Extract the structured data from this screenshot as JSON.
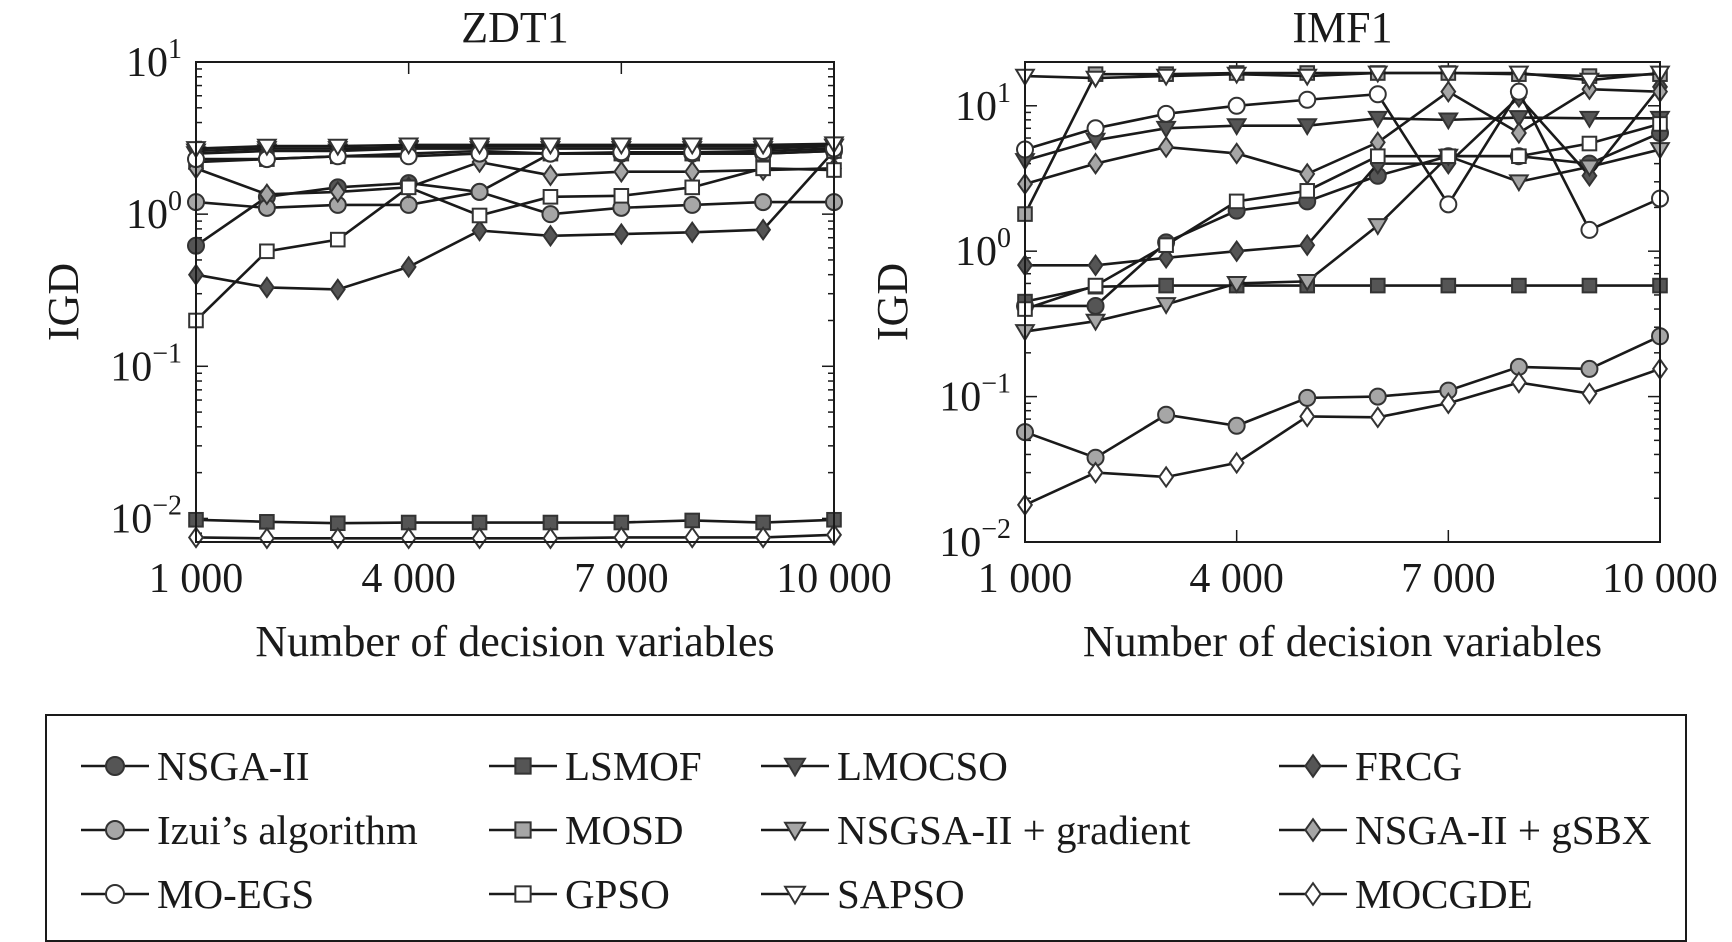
{
  "chart_data": [
    {
      "type": "line",
      "title": "ZDT1",
      "xlabel": "Number of decision variables",
      "ylabel": "IGD",
      "yscale": "log",
      "xlim": [
        1000,
        10000
      ],
      "ylim": [
        0.007,
        10
      ],
      "xticks": [
        1000,
        4000,
        7000,
        10000
      ],
      "xtick_labels": [
        "1 000",
        "4 000",
        "7 000",
        "10 000"
      ],
      "ytick_labels": [
        {
          "value": 10,
          "base": "10",
          "exp": "1"
        },
        {
          "value": 1,
          "base": "10",
          "exp": "0"
        },
        {
          "value": 0.1,
          "base": "10",
          "exp": "−1"
        },
        {
          "value": 0.01,
          "base": "10",
          "exp": "−2"
        }
      ],
      "x": [
        1000,
        2000,
        3000,
        4000,
        5000,
        6000,
        7000,
        8000,
        9000,
        10000
      ],
      "series": [
        {
          "name": "NSGA-II",
          "values": [
            0.62,
            1.3,
            1.5,
            1.6,
            1.4,
            2.5,
            2.5,
            2.5,
            2.5,
            2.6
          ]
        },
        {
          "name": "LSMOF",
          "values": [
            0.0098,
            0.0095,
            0.0093,
            0.0094,
            0.0094,
            0.0094,
            0.0094,
            0.0097,
            0.0094,
            0.0098
          ]
        },
        {
          "name": "LMOCSO",
          "values": [
            2.5,
            2.6,
            2.6,
            2.7,
            2.7,
            2.7,
            2.7,
            2.7,
            2.7,
            2.8
          ]
        },
        {
          "name": "FRCG",
          "values": [
            0.4,
            0.33,
            0.32,
            0.45,
            0.78,
            0.72,
            0.74,
            0.76,
            0.79,
            2.6
          ]
        },
        {
          "name": "Izui’s algorithm",
          "values": [
            1.2,
            1.1,
            1.15,
            1.15,
            1.4,
            1.0,
            1.1,
            1.15,
            1.2,
            1.2
          ]
        },
        {
          "name": "MOSD",
          "values": [
            2.2,
            2.3,
            2.4,
            2.5,
            2.6,
            2.5,
            2.5,
            2.5,
            2.5,
            2.6
          ]
        },
        {
          "name": "NSGSA-II + gradient",
          "values": [
            2.6,
            2.7,
            2.7,
            2.75,
            2.8,
            2.8,
            2.8,
            2.8,
            2.8,
            2.8
          ]
        },
        {
          "name": "NSGA-II + gSBX",
          "values": [
            2.0,
            1.35,
            1.4,
            1.5,
            2.2,
            1.8,
            1.9,
            1.9,
            1.95,
            2.0
          ]
        },
        {
          "name": "MO-EGS",
          "values": [
            2.3,
            2.3,
            2.4,
            2.4,
            2.5,
            2.5,
            2.55,
            2.55,
            2.6,
            2.7
          ]
        },
        {
          "name": "GPSO",
          "values": [
            0.2,
            0.57,
            0.68,
            1.5,
            0.98,
            1.3,
            1.32,
            1.5,
            2.0,
            1.95
          ]
        },
        {
          "name": "SAPSO",
          "values": [
            2.7,
            2.8,
            2.8,
            2.85,
            2.85,
            2.85,
            2.85,
            2.85,
            2.85,
            2.9
          ]
        },
        {
          "name": "MOCGDE",
          "values": [
            0.0075,
            0.0074,
            0.0074,
            0.0074,
            0.0074,
            0.0074,
            0.0075,
            0.0075,
            0.0075,
            0.0078
          ]
        }
      ]
    },
    {
      "type": "line",
      "title": "IMF1",
      "xlabel": "Number of decision variables",
      "ylabel": "IGD",
      "yscale": "log",
      "xlim": [
        1000,
        10000
      ],
      "ylim": [
        0.01,
        20
      ],
      "xticks": [
        1000,
        4000,
        7000,
        10000
      ],
      "xtick_labels": [
        "1 000",
        "4 000",
        "7 000",
        "10 000"
      ],
      "ytick_labels": [
        {
          "value": 10,
          "base": "10",
          "exp": "1"
        },
        {
          "value": 1,
          "base": "10",
          "exp": "0"
        },
        {
          "value": 0.1,
          "base": "10",
          "exp": "−1"
        },
        {
          "value": 0.01,
          "base": "10",
          "exp": "−2"
        }
      ],
      "x": [
        1000,
        2000,
        3000,
        4000,
        5000,
        6000,
        7000,
        8000,
        9000,
        10000
      ],
      "series": [
        {
          "name": "NSGA-II",
          "values": [
            0.42,
            0.42,
            1.15,
            1.9,
            2.2,
            3.3,
            4.5,
            4.5,
            4.0,
            6.5
          ]
        },
        {
          "name": "LSMOF",
          "values": [
            0.45,
            0.57,
            0.58,
            0.58,
            0.58,
            0.58,
            0.58,
            0.58,
            0.58,
            0.58
          ]
        },
        {
          "name": "LMOCSO",
          "values": [
            4.2,
            5.8,
            7.0,
            7.3,
            7.3,
            8.2,
            8.0,
            8.3,
            8.2,
            8.2
          ]
        },
        {
          "name": "FRCG",
          "values": [
            0.8,
            0.8,
            0.9,
            1.0,
            1.1,
            4.0,
            4.0,
            11.5,
            3.3,
            13.5
          ]
        },
        {
          "name": "Izui’s algorithm",
          "values": [
            0.057,
            0.038,
            0.075,
            0.063,
            0.098,
            0.1,
            0.11,
            0.16,
            0.155,
            0.26
          ]
        },
        {
          "name": "MOSD",
          "values": [
            1.8,
            16.5,
            16.5,
            16.8,
            16.8,
            16.8,
            16.8,
            16.5,
            16.0,
            16.5
          ]
        },
        {
          "name": "NSGSA-II + gradient",
          "values": [
            0.28,
            0.33,
            0.43,
            0.6,
            0.62,
            1.5,
            4.5,
            3.0,
            3.8,
            5.0
          ]
        },
        {
          "name": "NSGA-II + gSBX",
          "values": [
            2.9,
            4.0,
            5.2,
            4.7,
            3.4,
            5.6,
            12.5,
            6.5,
            13.0,
            12.5
          ]
        },
        {
          "name": "MO-EGS",
          "values": [
            5.0,
            7.0,
            8.8,
            10.0,
            11.0,
            12.0,
            2.1,
            12.5,
            1.4,
            2.3
          ]
        },
        {
          "name": "GPSO",
          "values": [
            0.4,
            0.58,
            1.1,
            2.2,
            2.6,
            4.5,
            4.5,
            4.5,
            5.5,
            7.5
          ]
        },
        {
          "name": "SAPSO",
          "values": [
            16.0,
            15.5,
            16.0,
            16.5,
            16.0,
            16.8,
            16.8,
            16.8,
            15.0,
            16.8
          ]
        },
        {
          "name": "MOCGDE",
          "values": [
            0.018,
            0.03,
            0.028,
            0.035,
            0.073,
            0.072,
            0.09,
            0.125,
            0.105,
            0.155
          ]
        }
      ]
    }
  ],
  "legend": {
    "columns": 4,
    "entries": [
      {
        "name": "NSGA-II",
        "marker": "circle",
        "fill": "#555555"
      },
      {
        "name": "LSMOF",
        "marker": "square",
        "fill": "#555555"
      },
      {
        "name": "LMOCSO",
        "marker": "triangle-down",
        "fill": "#555555"
      },
      {
        "name": "FRCG",
        "marker": "diamond",
        "fill": "#555555"
      },
      {
        "name": "Izui’s algorithm",
        "marker": "circle",
        "fill": "#a6a6a6"
      },
      {
        "name": "MOSD",
        "marker": "square",
        "fill": "#a6a6a6"
      },
      {
        "name": "NSGSA-II + gradient",
        "marker": "triangle-down",
        "fill": "#a6a6a6"
      },
      {
        "name": "NSGA-II + gSBX",
        "marker": "diamond",
        "fill": "#a6a6a6"
      },
      {
        "name": "MO-EGS",
        "marker": "circle",
        "fill": "#ffffff"
      },
      {
        "name": "GPSO",
        "marker": "square",
        "fill": "#ffffff"
      },
      {
        "name": "SAPSO",
        "marker": "triangle-down",
        "fill": "#ffffff"
      },
      {
        "name": "MOCGDE",
        "marker": "diamond",
        "fill": "#ffffff"
      }
    ]
  },
  "colors": {
    "line": "#1a1a1a",
    "marker_edge": "#333333",
    "axes": "#1a1a1a"
  }
}
